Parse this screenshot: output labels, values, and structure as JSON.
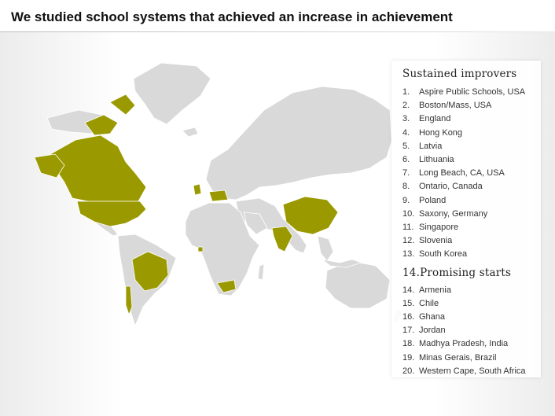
{
  "title": "We studied school systems that achieved an increase in achievement",
  "colors": {
    "highlight": "#9a9a00",
    "land": "#d9d9da",
    "border": "#ffffff"
  },
  "legend": {
    "sustained_heading": "Sustained improvers",
    "sustained": [
      {
        "num": "1.",
        "label": "Aspire Public Schools, USA"
      },
      {
        "num": "2.",
        "label": "Boston/Mass, USA"
      },
      {
        "num": "3.",
        "label": "England"
      },
      {
        "num": "4.",
        "label": "Hong Kong"
      },
      {
        "num": "5.",
        "label": "Latvia"
      },
      {
        "num": "6.",
        "label": "Lithuania"
      },
      {
        "num": "7.",
        "label": "Long Beach, CA, USA"
      },
      {
        "num": "8.",
        "label": "Ontario, Canada"
      },
      {
        "num": "9.",
        "label": "Poland"
      },
      {
        "num": "10.",
        "label": "Saxony, Germany"
      },
      {
        "num": "11.",
        "label": "Singapore"
      },
      {
        "num": "12.",
        "label": "Slovenia"
      },
      {
        "num": "13.",
        "label": "South Korea"
      }
    ],
    "promising_heading": "14.Promising starts",
    "promising": [
      {
        "num": "14.",
        "label": "Armenia"
      },
      {
        "num": "15.",
        "label": "Chile"
      },
      {
        "num": "16.",
        "label": "Ghana"
      },
      {
        "num": "17.",
        "label": "Jordan"
      },
      {
        "num": "18.",
        "label": "Madhya Pradesh, India"
      },
      {
        "num": "19.",
        "label": "Minas Gerais, Brazil"
      },
      {
        "num": "20.",
        "label": "Western Cape, South Africa"
      }
    ]
  }
}
